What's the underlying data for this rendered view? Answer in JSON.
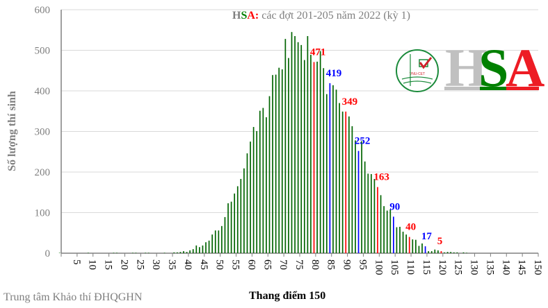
{
  "chart_data": {
    "type": "bar",
    "title_parts": {
      "h": "H",
      "s": "S",
      "a": "A",
      "colon": ":",
      "rest": "các đợt 201-205  năm 2022 (kỳ 1)"
    },
    "xlabel": "Thang điểm 150",
    "ylabel": "Số lượng thí sinh",
    "xlim": [
      0,
      150
    ],
    "ylim": [
      0,
      600
    ],
    "yticks": [
      0,
      100,
      200,
      300,
      400,
      500,
      600
    ],
    "xticks": [
      5,
      10,
      15,
      20,
      25,
      30,
      35,
      40,
      45,
      50,
      55,
      60,
      65,
      70,
      75,
      80,
      85,
      90,
      95,
      100,
      105,
      110,
      115,
      120,
      125,
      130,
      135,
      140,
      145,
      150
    ],
    "grid": true,
    "x_start": 0,
    "values": [
      1,
      0,
      0,
      0,
      0,
      0,
      0,
      0,
      0,
      1,
      0,
      0,
      0,
      0,
      0,
      0,
      0,
      1,
      1,
      0,
      0,
      0,
      0,
      1,
      1,
      0,
      0,
      1,
      1,
      0,
      0,
      0,
      0,
      1,
      0,
      0,
      2,
      2,
      3,
      5,
      3,
      7,
      10,
      19,
      15,
      19,
      27,
      31,
      46,
      56,
      56,
      67,
      89,
      123,
      127,
      147,
      165,
      183,
      209,
      246,
      275,
      311,
      301,
      351,
      358,
      335,
      387,
      439,
      440,
      457,
      453,
      528,
      481,
      545,
      535,
      520,
      513,
      476,
      535,
      489,
      471,
      472,
      498,
      456,
      392,
      419,
      414,
      403,
      370,
      349,
      349,
      337,
      313,
      278,
      252,
      276,
      226,
      196,
      195,
      183,
      163,
      143,
      116,
      105,
      108,
      90,
      64,
      65,
      53,
      46,
      40,
      34,
      33,
      18,
      24,
      17,
      5,
      5,
      9,
      7,
      5,
      2,
      3,
      3,
      2,
      2,
      0,
      2,
      1,
      0,
      0,
      0,
      0,
      0,
      0,
      0,
      0,
      0,
      0,
      0,
      0,
      0,
      0,
      0,
      0,
      0,
      0,
      0,
      0,
      0,
      0
    ],
    "highlights": [
      {
        "x": 80,
        "value": 471,
        "label": "471",
        "color": "#ff0000"
      },
      {
        "x": 85,
        "value": 419,
        "label": "419",
        "color": "#0000ff"
      },
      {
        "x": 90,
        "value": 349,
        "label": "349",
        "color": "#ff0000"
      },
      {
        "x": 94,
        "value": 252,
        "label": "252",
        "color": "#0000ff"
      },
      {
        "x": 100,
        "value": 163,
        "label": "163",
        "color": "#ff0000"
      },
      {
        "x": 105,
        "value": 90,
        "label": "90",
        "color": "#0000ff"
      },
      {
        "x": 110,
        "value": 40,
        "label": "40",
        "color": "#ff0000"
      },
      {
        "x": 115,
        "value": 17,
        "label": "17",
        "color": "#0000ff"
      },
      {
        "x": 120,
        "value": 5,
        "label": "5",
        "color": "#ff0000"
      }
    ],
    "bar_color": "#006400"
  },
  "logo": {
    "circle_text": "VNU-CET",
    "letters": [
      "H",
      "S",
      "A"
    ],
    "colors": [
      "#c0c0c0",
      "#008000",
      "#ed1c24"
    ]
  },
  "footer": "Trung tâm Khảo thí ĐHQGHN"
}
